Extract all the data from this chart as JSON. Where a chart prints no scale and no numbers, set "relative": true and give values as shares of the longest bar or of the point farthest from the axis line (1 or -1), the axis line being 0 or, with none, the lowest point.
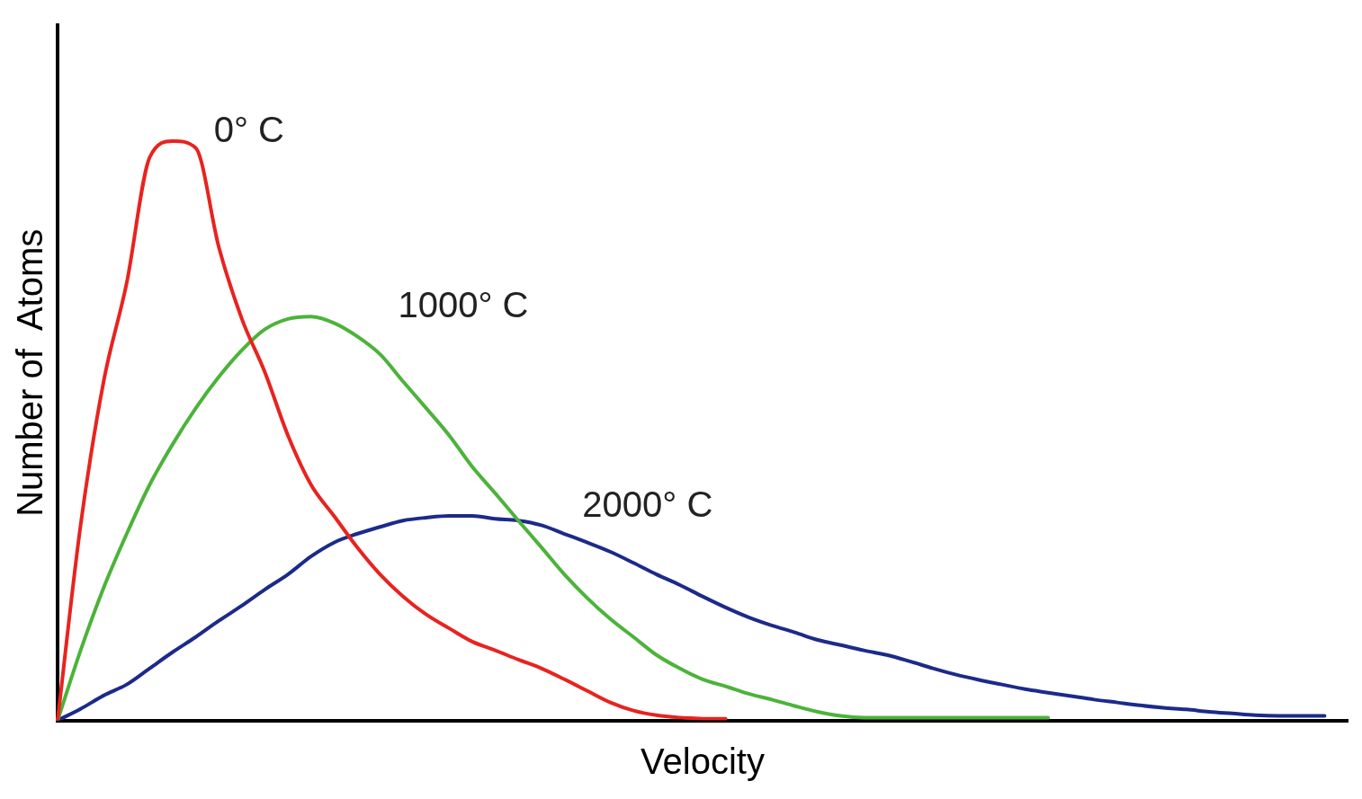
{
  "chart_data": {
    "type": "line",
    "relative": true,
    "xlabel": "Velocity",
    "ylabel": "Number of  Atoms",
    "legend": false,
    "grid": false,
    "marker": "none",
    "line_style": "solid",
    "categories": [
      null,
      null,
      null,
      null,
      null,
      null,
      null,
      null,
      null,
      null,
      null,
      null,
      null,
      null,
      null,
      null,
      null,
      null,
      null,
      null,
      null,
      null,
      null,
      null,
      null,
      null,
      null,
      null,
      null,
      null,
      null,
      null,
      null,
      null,
      null,
      null,
      null,
      null,
      null,
      null,
      null,
      null,
      null,
      null,
      null,
      null,
      null,
      null,
      null,
      null,
      null,
      null,
      null,
      null,
      null,
      null,
      null
    ],
    "series": [
      {
        "name": "0° C",
        "color": "#e8231f",
        "values": [
          0,
          0.337,
          0.585,
          0.755,
          0.972,
          1,
          0.988,
          0.817,
          0.693,
          0.601,
          0.492,
          0.407,
          0.353,
          0.299,
          0.252,
          0.214,
          0.183,
          0.159,
          0.136,
          0.121,
          0.105,
          0.09,
          0.071,
          0.051,
          0.031,
          0.017,
          0.009,
          0.005,
          0.003,
          0.003,
          null,
          null,
          null,
          null,
          null,
          null,
          null,
          null,
          null,
          null,
          null,
          null,
          null,
          null,
          null,
          null,
          null,
          null,
          null,
          null,
          null,
          null,
          null,
          null,
          null,
          null,
          null
        ]
      },
      {
        "name": "1000° C",
        "color": "#4cb33a",
        "values": [
          0,
          0.121,
          0.229,
          0.322,
          0.407,
          0.477,
          0.539,
          0.593,
          0.639,
          0.675,
          0.693,
          0.697,
          0.686,
          0.663,
          0.632,
          0.585,
          0.539,
          0.492,
          0.438,
          0.392,
          0.345,
          0.299,
          0.252,
          0.211,
          0.175,
          0.144,
          0.113,
          0.09,
          0.071,
          0.059,
          0.046,
          0.036,
          0.025,
          0.015,
          0.008,
          0.005,
          0.005,
          0.005,
          0.005,
          0.005,
          0.005,
          0.005,
          0.005,
          0.005,
          null,
          null,
          null,
          null,
          null,
          null,
          null,
          null,
          null,
          null,
          null,
          null,
          null
        ]
      },
      {
        "name": "2000° C",
        "color": "#1c2a8a",
        "values": [
          0,
          0.02,
          0.043,
          0.062,
          0.09,
          0.118,
          0.144,
          0.172,
          0.198,
          0.226,
          0.252,
          0.283,
          0.307,
          0.322,
          0.334,
          0.345,
          0.35,
          0.353,
          0.353,
          0.348,
          0.345,
          0.337,
          0.322,
          0.307,
          0.291,
          0.272,
          0.252,
          0.234,
          0.214,
          0.195,
          0.178,
          0.164,
          0.152,
          0.139,
          0.13,
          0.121,
          0.113,
          0.102,
          0.09,
          0.079,
          0.07,
          0.062,
          0.054,
          0.048,
          0.042,
          0.036,
          0.031,
          0.026,
          0.022,
          0.019,
          0.015,
          0.012,
          0.009,
          0.008,
          0.008,
          0.008,
          null
        ]
      }
    ]
  }
}
